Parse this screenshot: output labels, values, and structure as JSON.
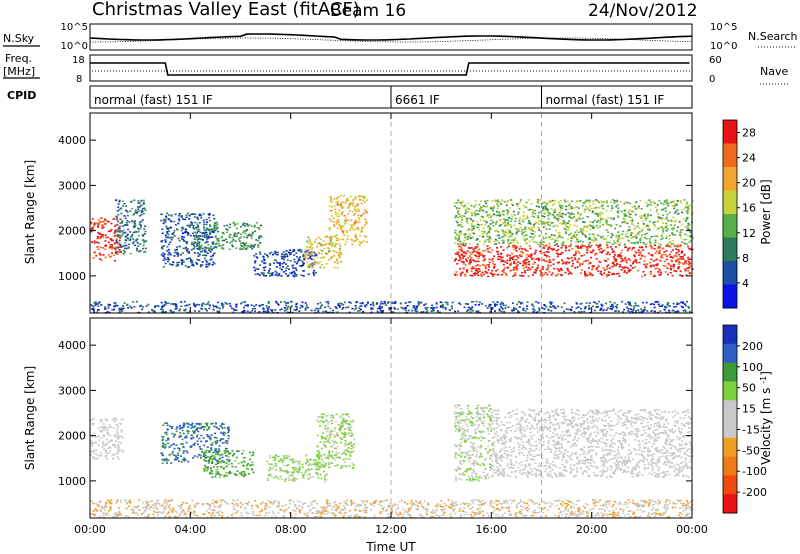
{
  "header": {
    "station": "Christmas Valley East (fitACF)",
    "beam": "Beam 16",
    "date": "24/Nov/2012"
  },
  "strip_labels": {
    "nsky": "N.Sky",
    "nsearch": "N.Search",
    "freq_line1": "Freq.",
    "freq_line2": "[MHz]",
    "nave": "Nave",
    "cpid": "CPID"
  },
  "strip_ticks": {
    "noise_left": [
      "10^5",
      "10^0"
    ],
    "noise_right": [
      "10^5",
      "10^0"
    ],
    "freq_left": [
      "18",
      "8"
    ],
    "nave_right": [
      "60",
      "0"
    ]
  },
  "cpid_segments": [
    {
      "label": "normal (fast) 151 IF",
      "start_h": 0,
      "end_h": 12
    },
    {
      "label": "6661 IF",
      "start_h": 12,
      "end_h": 18
    },
    {
      "label": "normal (fast) 151 IF",
      "start_h": 18,
      "end_h": 24
    }
  ],
  "colors": {
    "power_scale": [
      "#0a12e8",
      "#1d4ea8",
      "#2e7d5a",
      "#59b04a",
      "#c9d23a",
      "#f2a531",
      "#f26a1e",
      "#e81414"
    ],
    "velocity_scale": [
      "#1a2fb8",
      "#2e5ec8",
      "#3d9a3a",
      "#7dd13a",
      "#c9c9c9",
      "#c9c9c9",
      "#f0a020",
      "#f07a18",
      "#f04a10",
      "#e81414"
    ]
  },
  "chart_data": [
    {
      "type": "heatmap",
      "panel": "power",
      "xlabel": "Time UT",
      "ylabel": "Slant Range [km]",
      "xlim": [
        0,
        24
      ],
      "ylim": [
        180,
        4600
      ],
      "x_ticks": [
        "00:00",
        "04:00",
        "08:00",
        "12:00",
        "16:00",
        "20:00",
        "00:00"
      ],
      "y_ticks": [
        "1000",
        "2000",
        "3000",
        "4000"
      ],
      "colorbar": {
        "label": "Power [dB]",
        "ticks": [
          "4",
          "8",
          "12",
          "16",
          "20",
          "24",
          "28"
        ],
        "range": [
          0,
          30
        ]
      },
      "regions": [
        {
          "t0": 0.0,
          "t1": 1.2,
          "r0": 1350,
          "r1": 2300,
          "level": 27
        },
        {
          "t0": 1.0,
          "t1": 2.2,
          "r0": 1500,
          "r1": 2700,
          "level": 8
        },
        {
          "t0": 2.8,
          "t1": 5.0,
          "r0": 1200,
          "r1": 2400,
          "level": 6
        },
        {
          "t0": 4.0,
          "t1": 6.8,
          "r0": 1600,
          "r1": 2200,
          "level": 11
        },
        {
          "t0": 6.5,
          "t1": 9.0,
          "r0": 1000,
          "r1": 1600,
          "level": 5
        },
        {
          "t0": 8.5,
          "t1": 10.0,
          "r0": 1200,
          "r1": 1900,
          "level": 18
        },
        {
          "t0": 9.5,
          "t1": 11.0,
          "r0": 1700,
          "r1": 2800,
          "level": 19
        },
        {
          "t0": 14.5,
          "t1": 24.0,
          "r0": 1000,
          "r1": 1700,
          "level": 28
        },
        {
          "t0": 14.5,
          "t1": 24.0,
          "r0": 1700,
          "r1": 2700,
          "level": 14
        },
        {
          "t0": 0.0,
          "t1": 24.0,
          "r0": 200,
          "r1": 450,
          "level": 6
        }
      ]
    },
    {
      "type": "heatmap",
      "panel": "velocity",
      "xlabel": "Time UT",
      "ylabel": "Slant Range [km]",
      "xlim": [
        0,
        24
      ],
      "ylim": [
        180,
        4600
      ],
      "x_ticks": [
        "00:00",
        "04:00",
        "08:00",
        "12:00",
        "16:00",
        "20:00",
        "00:00"
      ],
      "y_ticks": [
        "1000",
        "2000",
        "3000",
        "4000"
      ],
      "colorbar": {
        "label": "Velocity [m s^-1]",
        "ticks": [
          "200",
          "100",
          "50",
          "15",
          "-15",
          "-50",
          "-100",
          "-200"
        ],
        "range": [
          -250,
          250
        ]
      },
      "regions": [
        {
          "t0": 0.0,
          "t1": 1.3,
          "r0": 1500,
          "r1": 2400,
          "level": 0
        },
        {
          "t0": 2.8,
          "t1": 5.5,
          "r0": 1400,
          "r1": 2300,
          "level": 160
        },
        {
          "t0": 4.5,
          "t1": 6.5,
          "r0": 1100,
          "r1": 1700,
          "level": 110
        },
        {
          "t0": 7.0,
          "t1": 9.5,
          "r0": 1000,
          "r1": 1600,
          "level": 60
        },
        {
          "t0": 9.0,
          "t1": 10.5,
          "r0": 1300,
          "r1": 2500,
          "level": 60
        },
        {
          "t0": 14.5,
          "t1": 16.0,
          "r0": 1000,
          "r1": 2700,
          "level": 40
        },
        {
          "t0": 16.0,
          "t1": 24.0,
          "r0": 1100,
          "r1": 2600,
          "level": 0
        },
        {
          "t0": 0.0,
          "t1": 24.0,
          "r0": 200,
          "r1": 600,
          "level": -40
        }
      ]
    }
  ]
}
